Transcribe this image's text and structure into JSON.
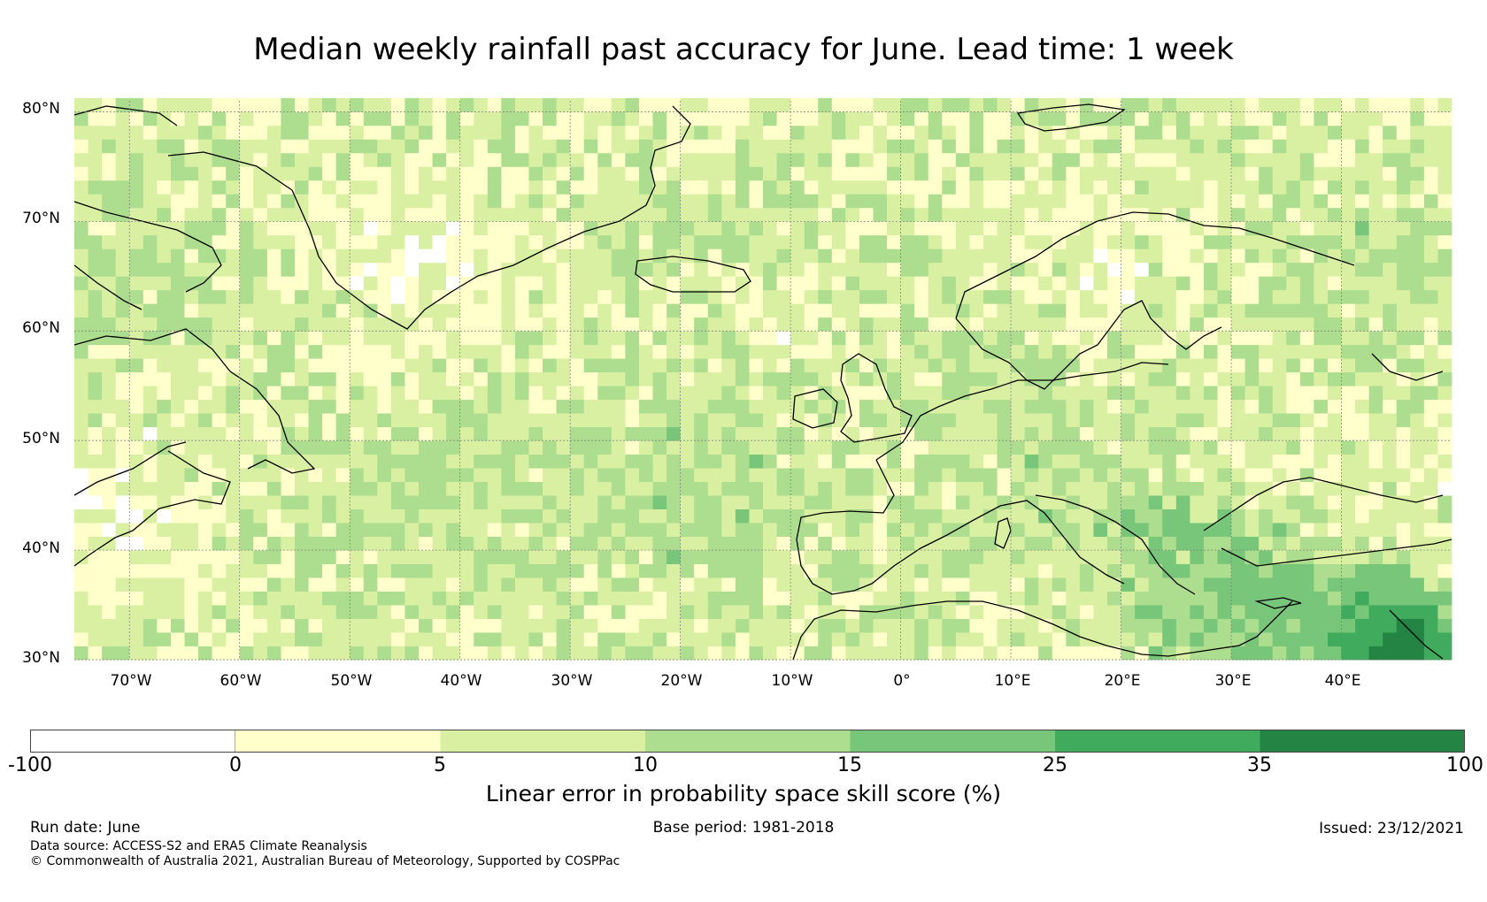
{
  "title": "Median weekly rainfall past accuracy for June. Lead time: 1 week",
  "map": {
    "lat_labels": [
      "80°N",
      "70°N",
      "60°N",
      "50°N",
      "40°N",
      "30°N"
    ],
    "lon_labels": [
      "70°W",
      "60°W",
      "50°W",
      "40°W",
      "30°W",
      "20°W",
      "10°W",
      "0°",
      "10°E",
      "20°E",
      "30°E",
      "40°E"
    ],
    "lat_range": [
      30,
      81
    ],
    "lon_range": [
      -75,
      50
    ]
  },
  "colorbar": {
    "label": "Linear error in probability space skill score (%)",
    "ticks": [
      "-100",
      "0",
      "5",
      "10",
      "15",
      "25",
      "35",
      "100"
    ],
    "colors": [
      "#ffffff",
      "#ffffcc",
      "#d9f0a3",
      "#addd8e",
      "#78c679",
      "#41ab5d",
      "#238443"
    ]
  },
  "footer": {
    "run_date": "Run date: June",
    "base_period": "Base period: 1981-2018",
    "issued": "Issued: 23/12/2021",
    "data_source": "Data source: ACCESS-S2 and ERA5 Climate Reanalysis",
    "copyright": "© Commonwealth of Australia 2021, Australian Bureau of Meteorology, Supported by COSPPac"
  }
}
